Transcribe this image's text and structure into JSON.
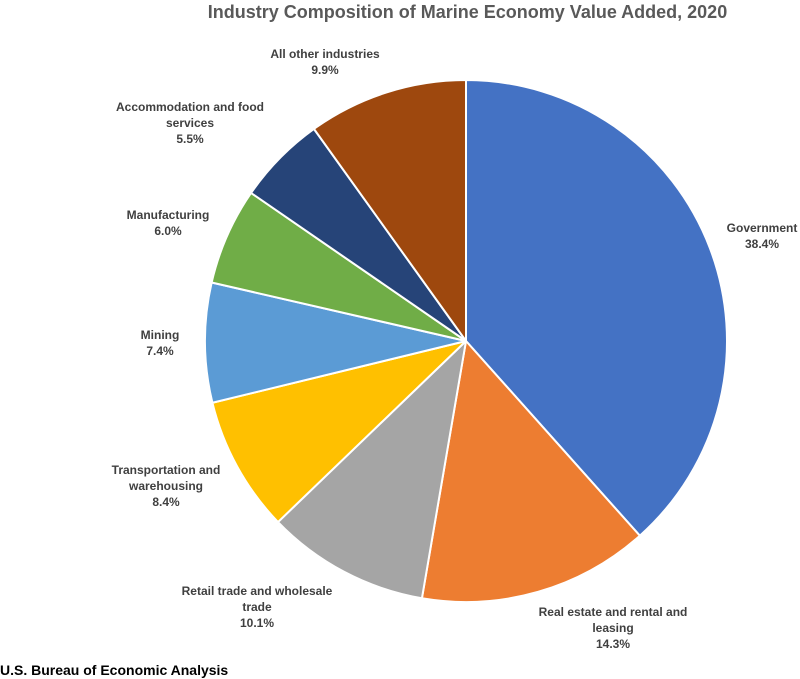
{
  "chart_data": {
    "type": "pie",
    "title": "Industry Composition of Marine Economy Value Added, 2020",
    "slices": [
      {
        "label": "Government",
        "value": 38.4,
        "display": "38.4%",
        "color": "#4472C4"
      },
      {
        "label": "Real estate and rental and leasing",
        "value": 14.3,
        "display": "14.3%",
        "color": "#ED7D31"
      },
      {
        "label": "Retail trade and wholesale trade",
        "value": 10.1,
        "display": "10.1%",
        "color": "#A5A5A5"
      },
      {
        "label": "Transportation and warehousing",
        "value": 8.4,
        "display": "8.4%",
        "color": "#FFC000"
      },
      {
        "label": "Mining",
        "value": 7.4,
        "display": "7.4%",
        "color": "#5B9BD5"
      },
      {
        "label": "Manufacturing",
        "value": 6.0,
        "display": "6.0%",
        "color": "#70AD47"
      },
      {
        "label": "Accommodation and food services",
        "value": 5.5,
        "display": "5.5%",
        "color": "#264478"
      },
      {
        "label": "All other industries",
        "value": 9.9,
        "display": "9.9%",
        "color": "#9E480E"
      }
    ]
  },
  "source": "U.S. Bureau of Economic Analysis"
}
